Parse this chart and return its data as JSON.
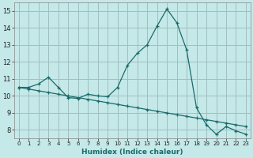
{
  "xlabel": "Humidex (Indice chaleur)",
  "background_color": "#c5e8e8",
  "grid_color": "#9fbfbf",
  "line_color": "#1a6b6b",
  "xlim": [
    -0.5,
    23.5
  ],
  "ylim": [
    7.5,
    15.5
  ],
  "xticks": [
    0,
    1,
    2,
    3,
    4,
    5,
    6,
    7,
    8,
    9,
    10,
    11,
    12,
    13,
    14,
    15,
    16,
    17,
    18,
    19,
    20,
    21,
    22,
    23
  ],
  "yticks": [
    8,
    9,
    10,
    11,
    12,
    13,
    14,
    15
  ],
  "curve1_x": [
    0,
    1,
    2,
    3,
    4,
    5,
    6,
    7,
    8,
    9,
    10,
    11,
    12,
    13,
    14,
    15,
    16,
    17,
    18,
    19,
    20,
    21,
    22,
    23
  ],
  "curve1_y": [
    10.5,
    10.5,
    10.7,
    11.1,
    10.5,
    9.9,
    9.85,
    10.1,
    10.0,
    9.95,
    10.5,
    11.8,
    12.5,
    13.0,
    14.1,
    15.1,
    14.3,
    12.7,
    9.3,
    8.3,
    7.75,
    8.2,
    7.95,
    7.75
  ],
  "curve2_x": [
    0,
    1,
    2,
    3,
    4,
    5,
    6,
    7,
    8,
    9,
    10,
    11,
    12,
    13,
    14,
    15,
    16,
    17,
    18,
    19,
    20,
    21,
    22,
    23
  ],
  "curve2_y": [
    10.5,
    10.4,
    10.3,
    10.2,
    10.1,
    10.0,
    9.9,
    9.8,
    9.7,
    9.6,
    9.5,
    9.4,
    9.3,
    9.2,
    9.1,
    9.0,
    8.9,
    8.8,
    8.7,
    8.6,
    8.5,
    8.4,
    8.3,
    8.2
  ]
}
